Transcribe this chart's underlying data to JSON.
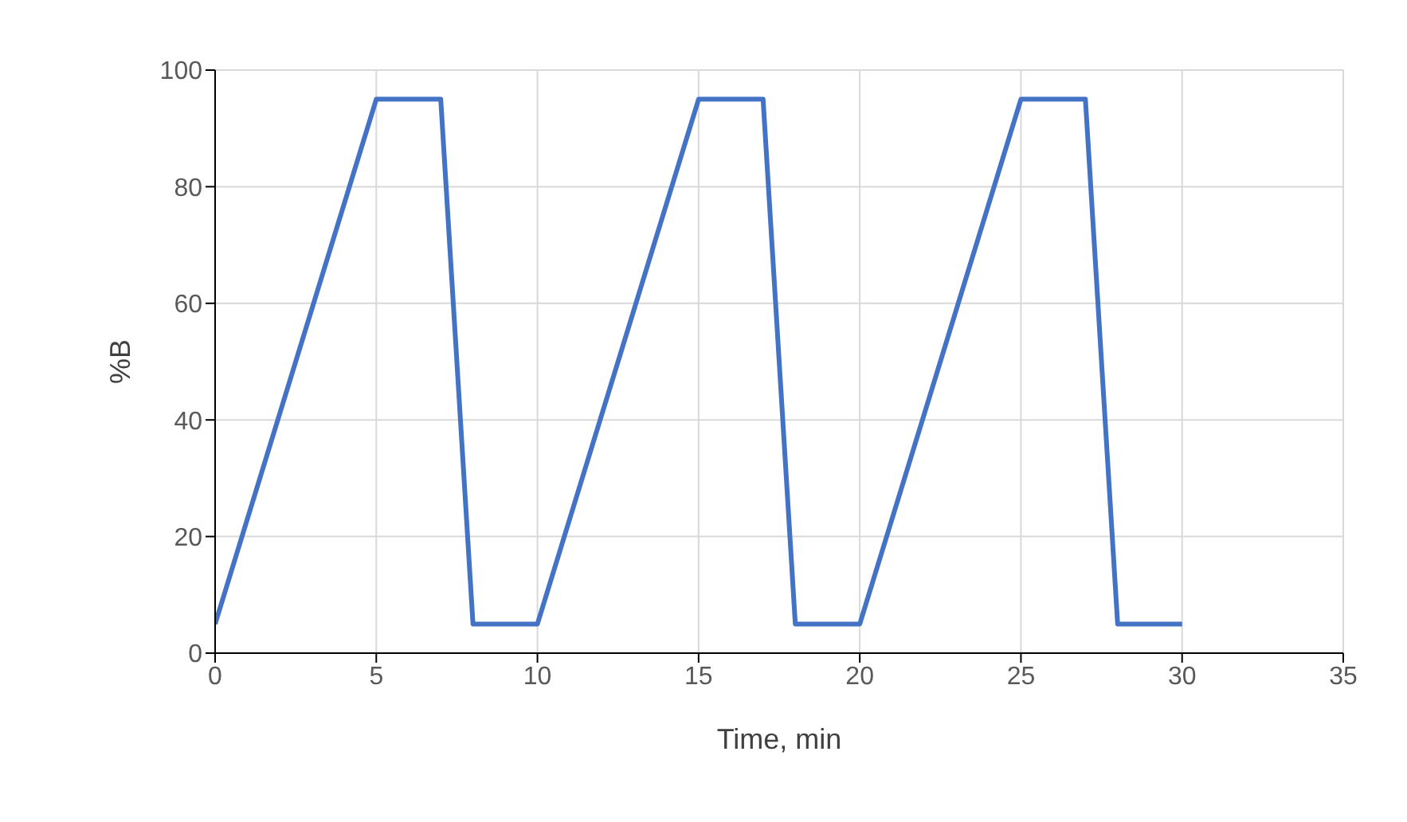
{
  "chart_data": {
    "type": "line",
    "xlabel": "Time, min",
    "ylabel": "%B",
    "x": [
      0,
      5,
      7,
      8,
      10,
      15,
      17,
      18,
      20,
      25,
      27,
      28,
      30
    ],
    "series": [
      {
        "color": "#4472c4",
        "values": [
          5,
          95,
          95,
          5,
          5,
          95,
          95,
          5,
          5,
          95,
          95,
          5,
          5
        ]
      }
    ],
    "xlim": [
      0,
      35
    ],
    "xticks": [
      0,
      5,
      10,
      15,
      20,
      25,
      30,
      35
    ],
    "ylim": [
      0,
      100
    ],
    "yticks": [
      0,
      20,
      40,
      60,
      80,
      100
    ],
    "grid": true,
    "marker": "none",
    "line_style": "solid"
  }
}
